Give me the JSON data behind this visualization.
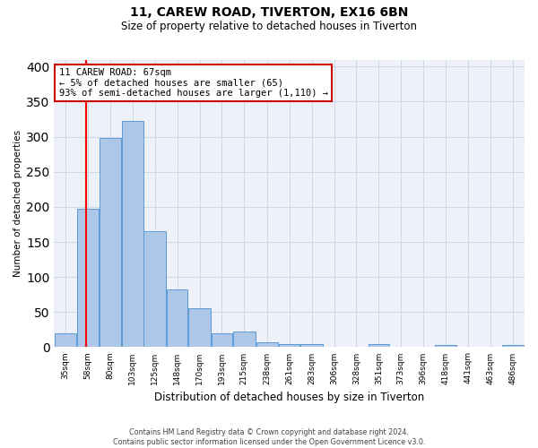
{
  "title1": "11, CAREW ROAD, TIVERTON, EX16 6BN",
  "title2": "Size of property relative to detached houses in Tiverton",
  "xlabel": "Distribution of detached houses by size in Tiverton",
  "ylabel": "Number of detached properties",
  "bin_labels": [
    "35sqm",
    "58sqm",
    "80sqm",
    "103sqm",
    "125sqm",
    "148sqm",
    "170sqm",
    "193sqm",
    "215sqm",
    "238sqm",
    "261sqm",
    "283sqm",
    "306sqm",
    "328sqm",
    "351sqm",
    "373sqm",
    "396sqm",
    "418sqm",
    "441sqm",
    "463sqm",
    "486sqm"
  ],
  "bar_values": [
    20,
    197,
    298,
    323,
    165,
    82,
    55,
    20,
    22,
    7,
    5,
    5,
    0,
    0,
    4,
    0,
    0,
    3,
    0,
    0,
    3
  ],
  "bar_color": "#aec6e8",
  "bar_edge_color": "#5b9bd5",
  "grid_color": "#d0d8e8",
  "bg_color": "#eef2f8",
  "red_line_x": 67,
  "bin_edges": [
    35,
    58,
    80,
    103,
    125,
    148,
    170,
    193,
    215,
    238,
    261,
    283,
    306,
    328,
    351,
    373,
    396,
    418,
    441,
    463,
    486,
    509
  ],
  "annotation_line1": "11 CAREW ROAD: 67sqm",
  "annotation_line2": "← 5% of detached houses are smaller (65)",
  "annotation_line3": "93% of semi-detached houses are larger (1,110) →",
  "annotation_box_color": "#ffffff",
  "annotation_border_color": "#cc0000",
  "footer1": "Contains HM Land Registry data © Crown copyright and database right 2024.",
  "footer2": "Contains public sector information licensed under the Open Government Licence v3.0.",
  "ylim": [
    0,
    410
  ],
  "yticks": [
    0,
    50,
    100,
    150,
    200,
    250,
    300,
    350,
    400
  ]
}
